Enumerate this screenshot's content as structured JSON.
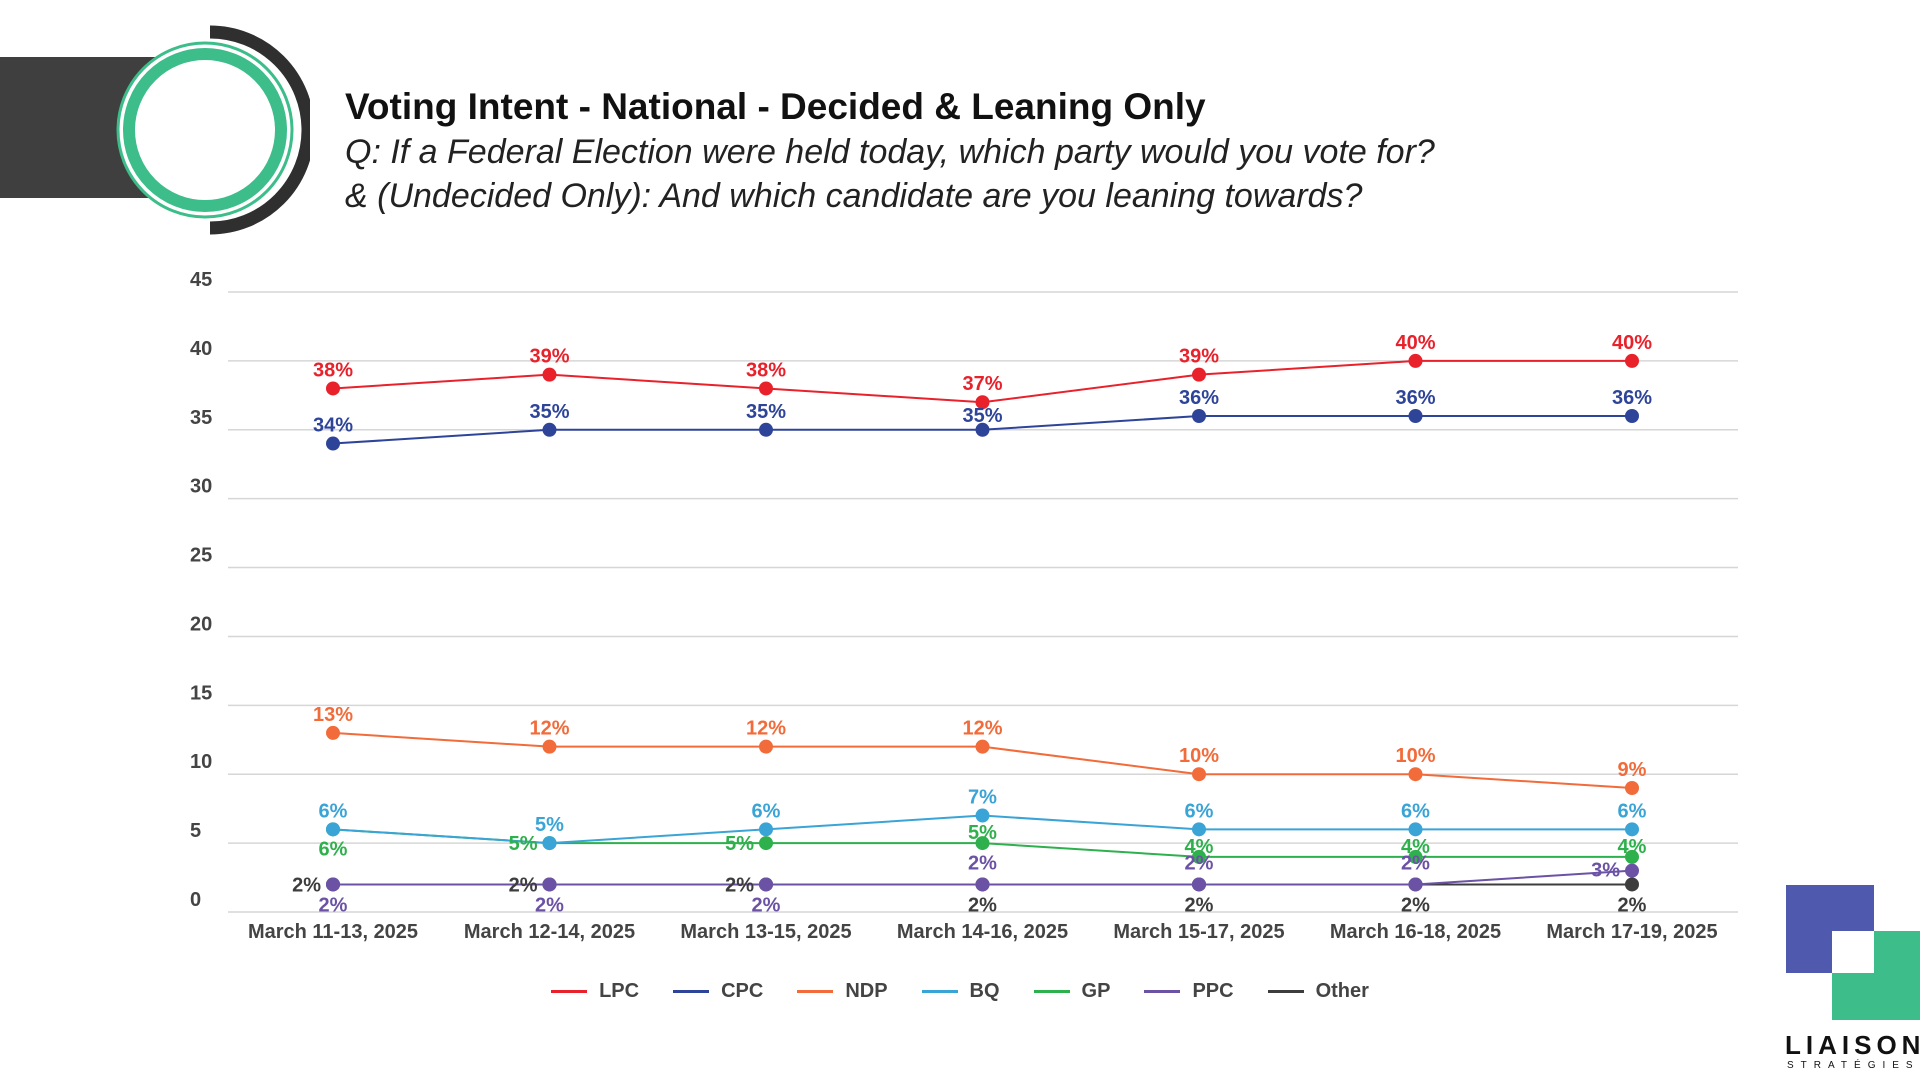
{
  "header": {
    "title": "Voting Intent - National - Decided & Leaning Only",
    "subtitle_line1": "Q: If a Federal Election were held today, which party would you vote for?",
    "subtitle_line2": "& (Undecided Only): And which candidate are you leaning towards?"
  },
  "logo": {
    "word": "LIAISON",
    "sub": "STRATÉGIES",
    "colors": [
      "#4f5aae",
      "#3dbd8a"
    ]
  },
  "chart_data": {
    "type": "line",
    "categories": [
      "March 11-13, 2025",
      "March 12-14, 2025",
      "March 13-15, 2025",
      "March 14-16, 2025",
      "March 15-17, 2025",
      "March 16-18, 2025",
      "March 17-19, 2025"
    ],
    "ylim": [
      0,
      45
    ],
    "yticks": [
      0,
      5,
      10,
      15,
      20,
      25,
      30,
      35,
      40,
      45
    ],
    "grid": true,
    "legend_position": "bottom",
    "series": [
      {
        "name": "LPC",
        "color": "#e8212b",
        "values": [
          38,
          39,
          38,
          37,
          39,
          40,
          40
        ],
        "label_pos": "above"
      },
      {
        "name": "CPC",
        "color": "#2e4499",
        "values": [
          34,
          35,
          35,
          35,
          36,
          36,
          36
        ],
        "label_pos": "above"
      },
      {
        "name": "NDP",
        "color": "#f26b3a",
        "values": [
          13,
          12,
          12,
          12,
          10,
          10,
          9
        ],
        "label_pos": "above"
      },
      {
        "name": "BQ",
        "color": "#3aa4d6",
        "values": [
          6,
          5,
          6,
          7,
          6,
          6,
          6
        ],
        "label_pos": "above"
      },
      {
        "name": "GP",
        "color": "#2eb04c",
        "values": [
          6,
          5,
          5,
          5,
          4,
          4,
          4
        ],
        "label_pos": "mixed"
      },
      {
        "name": "PPC",
        "color": "#6b52a5",
        "values": [
          2,
          2,
          2,
          2,
          2,
          2,
          3
        ],
        "label_pos": "mixed"
      },
      {
        "name": "Other",
        "color": "#3d3d3d",
        "values": [
          2,
          2,
          2,
          2,
          2,
          2,
          2
        ],
        "label_pos": "mixed"
      }
    ],
    "value_suffix": "%"
  }
}
